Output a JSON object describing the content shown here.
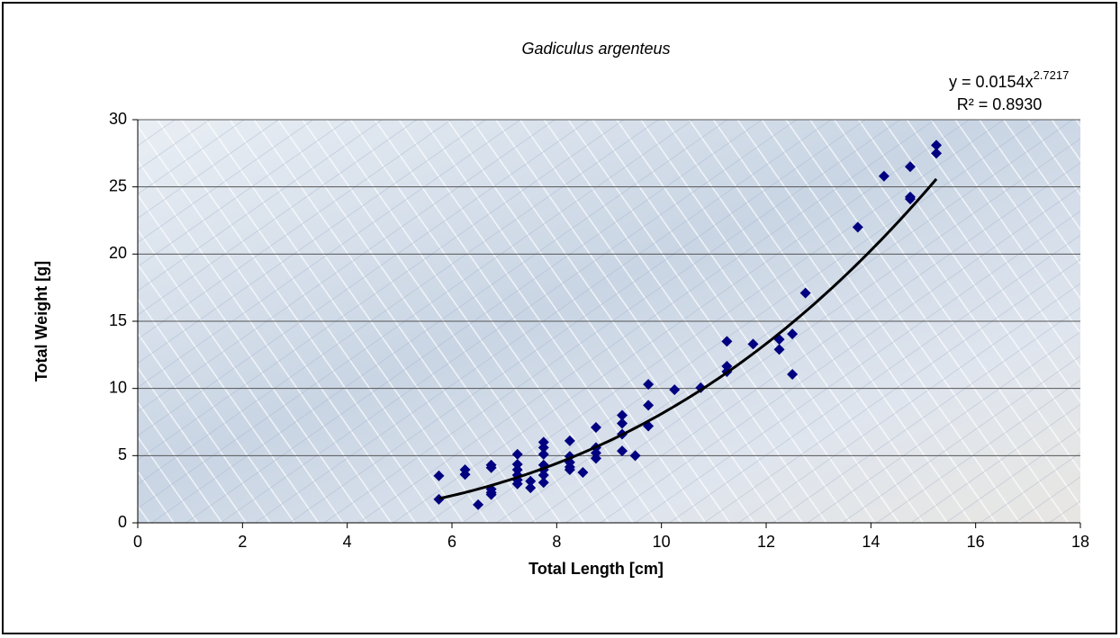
{
  "chart_data": {
    "type": "scatter",
    "title": "Gadiculus argenteus",
    "x_label": "Total Length [cm]",
    "y_label": "Total Weight [g]",
    "xlim": [
      0,
      18
    ],
    "xticks": [
      0,
      2,
      4,
      6,
      8,
      10,
      12,
      14,
      16,
      18
    ],
    "ylim": [
      0,
      30
    ],
    "yticks": [
      0,
      5,
      10,
      15,
      20,
      25,
      30
    ],
    "grid": true,
    "color": "#000080",
    "x": [
      5.75,
      5.75,
      6.25,
      6.25,
      6.5,
      6.75,
      6.75,
      6.75,
      6.75,
      6.75,
      7.25,
      7.25,
      7.25,
      7.25,
      7.25,
      7.25,
      7.5,
      7.5,
      7.75,
      7.75,
      7.75,
      7.75,
      7.75,
      7.75,
      7.75,
      8.25,
      8.25,
      8.25,
      8.25,
      8.25,
      8.5,
      8.75,
      8.75,
      8.75,
      8.75,
      9.25,
      9.25,
      9.25,
      9.25,
      9.5,
      9.75,
      9.75,
      9.75,
      10.25,
      10.75,
      11.25,
      11.25,
      11.25,
      11.75,
      12.25,
      12.25,
      12.5,
      12.5,
      12.75,
      13.75,
      14.25,
      14.75,
      14.75,
      14.75,
      15.25,
      15.25
    ],
    "values": [
      3.5,
      1.75,
      3.95,
      3.6,
      1.35,
      4.3,
      4.1,
      2.5,
      2.25,
      2.1,
      5.1,
      4.35,
      3.95,
      3.55,
      3.2,
      2.9,
      3.1,
      2.6,
      6.0,
      5.6,
      5.1,
      4.3,
      3.95,
      3.55,
      3.0,
      6.1,
      4.95,
      4.5,
      4.15,
      3.95,
      3.75,
      7.1,
      5.6,
      5.2,
      4.8,
      8.0,
      7.4,
      6.6,
      5.35,
      5.0,
      10.3,
      8.75,
      7.2,
      9.9,
      10.05,
      13.5,
      11.65,
      11.25,
      13.3,
      13.65,
      12.9,
      14.05,
      11.05,
      17.1,
      22.0,
      25.8,
      26.5,
      24.25,
      24.1,
      28.1,
      27.5
    ],
    "trendline": {
      "equation": "y = 0.0154x",
      "exponent_label": "2.7217",
      "r2_label": "R² = 0.8930",
      "coefficient": 0.0154,
      "exponent": 2.7217,
      "color": "#000000"
    }
  }
}
